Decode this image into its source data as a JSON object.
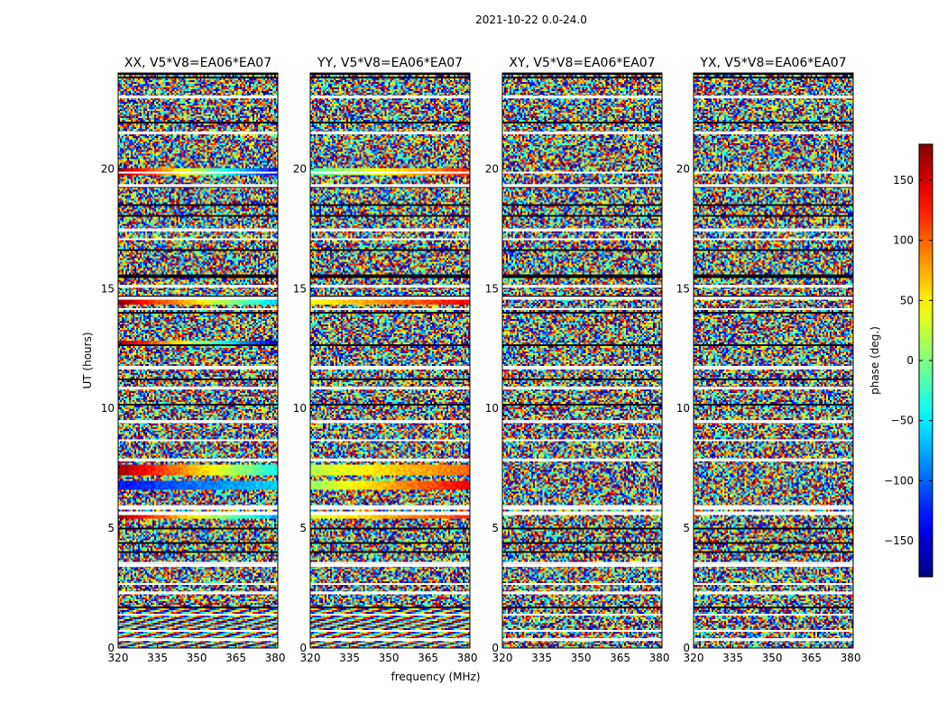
{
  "figure": {
    "suptitle": "2021-10-22 0.0-24.0",
    "xlabel": "frequency (MHz)",
    "ylabel": "UT (hours)"
  },
  "chart_data": {
    "type": "heatmap",
    "x_range": [
      320,
      381
    ],
    "y_range": [
      0,
      24
    ],
    "x_ticks": [
      320,
      335,
      350,
      365,
      380
    ],
    "y_ticks": [
      0,
      5,
      10,
      15,
      20
    ],
    "colormap": "jet",
    "panels": [
      {
        "title": "XX, V5*V8=EA06*EA07",
        "correlation": "XX"
      },
      {
        "title": "YY, V5*V8=EA06*EA07",
        "correlation": "YY"
      },
      {
        "title": "XY, V5*V8=EA06*EA07",
        "correlation": "XY"
      },
      {
        "title": "YX, V5*V8=EA06*EA07",
        "correlation": "YX"
      }
    ],
    "colorbar": {
      "label": "phase (deg.)",
      "range": [
        -180,
        180
      ],
      "ticks": [
        150,
        100,
        50,
        0,
        -50,
        -100,
        -150
      ],
      "tick_labels": [
        "150",
        "100",
        "50",
        "0",
        "−50",
        "−100",
        "−150"
      ]
    },
    "flagged_rows_ut_hours": [
      0.35,
      2.3,
      3.45,
      5.9,
      7.85,
      9.45,
      10.85,
      14.6,
      15.1,
      17.45,
      19.3,
      21.5,
      23.0
    ],
    "coherent_bands": {
      "XX": [
        {
          "ut_start": 19.7,
          "ut_end": 20.0,
          "phase_start_deg": 170,
          "phase_end_deg": -140
        },
        {
          "ut_start": 14.3,
          "ut_end": 14.55,
          "phase_start_deg": 170,
          "phase_end_deg": -60
        },
        {
          "ut_start": 12.7,
          "ut_end": 12.85,
          "phase_start_deg": 175,
          "phase_end_deg": -150
        },
        {
          "ut_start": 7.2,
          "ut_end": 7.65,
          "phase_start_deg": 170,
          "phase_end_deg": -40
        },
        {
          "ut_start": 6.6,
          "ut_end": 6.95,
          "phase_start_deg": -130,
          "phase_end_deg": -60
        },
        {
          "ut_start": 5.4,
          "ut_end": 5.7,
          "phase_start_deg": 170,
          "phase_end_deg": -80
        }
      ],
      "YY": [
        {
          "ut_start": 19.7,
          "ut_end": 20.0,
          "phase_start_deg": -20,
          "phase_end_deg": 120
        },
        {
          "ut_start": 14.3,
          "ut_end": 14.55,
          "phase_start_deg": 40,
          "phase_end_deg": 140
        },
        {
          "ut_start": 7.2,
          "ut_end": 7.65,
          "phase_start_deg": 20,
          "phase_end_deg": 100
        },
        {
          "ut_start": 6.6,
          "ut_end": 6.95,
          "phase_start_deg": 10,
          "phase_end_deg": 140
        },
        {
          "ut_start": 5.4,
          "ut_end": 5.7,
          "phase_start_deg": 30,
          "phase_end_deg": 120
        }
      ],
      "XY": [],
      "YX": []
    }
  }
}
